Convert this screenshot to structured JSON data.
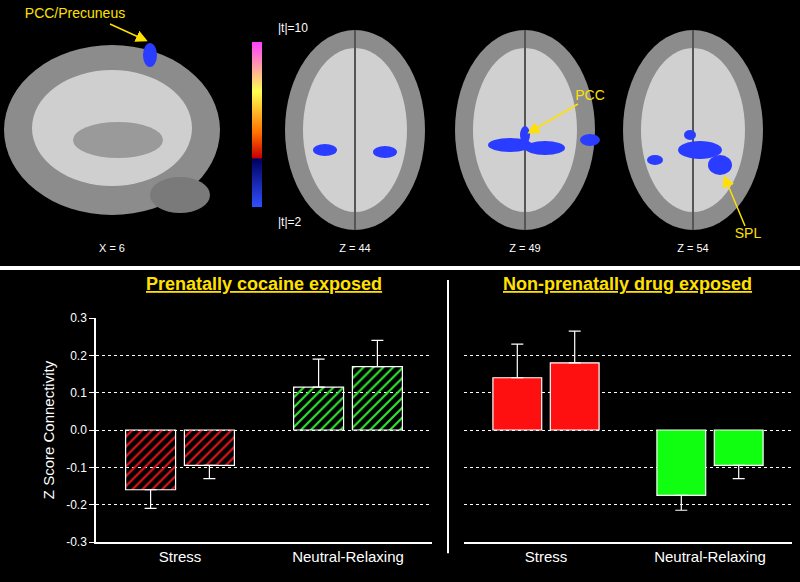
{
  "brain_maps": {
    "colorbar": {
      "max_label": "|t|=10",
      "min_label": "|t|=2"
    },
    "slices": [
      {
        "label": "X = 6",
        "region_labels": [
          "PCC/Precuneus"
        ]
      },
      {
        "label": "Z = 44",
        "region_labels": []
      },
      {
        "label": "Z = 49",
        "region_labels": [
          "PCC"
        ]
      },
      {
        "label": "Z = 54",
        "region_labels": [
          "SPL"
        ]
      }
    ]
  },
  "chart_data": [
    {
      "type": "bar",
      "title": "Prenatally cocaine exposed",
      "y_label": "Z Score Connectivity",
      "categories": [
        "Stress",
        "Neutral-Relaxing"
      ],
      "series": [
        {
          "values": [
            -0.16,
            0.115
          ],
          "errors": [
            0.05,
            0.075
          ],
          "colors": [
            "#e8141c",
            "#2ee62e"
          ],
          "marker": "hatched"
        },
        {
          "values": [
            -0.095,
            0.17
          ],
          "errors": [
            0.035,
            0.07
          ],
          "colors": [
            "#e8141c",
            "#2ee62e"
          ],
          "marker": "hatched"
        }
      ],
      "ylim": [
        -0.3,
        0.3
      ],
      "yticks": [
        -0.3,
        -0.2,
        -0.1,
        {
          "value": 0,
          "label": "0.0"
        },
        0.1,
        0.2,
        0.3
      ],
      "grid": true
    },
    {
      "type": "bar",
      "title": "Non-prenatally drug exposed",
      "categories": [
        "Stress",
        "Neutral-Relaxing"
      ],
      "series": [
        {
          "values": [
            0.14,
            -0.175
          ],
          "errors": [
            0.09,
            0.04
          ],
          "colors": [
            "#ff1010",
            "#10ff10"
          ],
          "marker": "solid"
        },
        {
          "values": [
            0.18,
            -0.095
          ],
          "errors": [
            0.085,
            0.035
          ],
          "colors": [
            "#ff1010",
            "#10ff10"
          ],
          "marker": "solid"
        }
      ],
      "ylim": [
        -0.3,
        0.3
      ],
      "yticks": [
        -0.3,
        -0.2,
        -0.1,
        {
          "value": 0,
          "label": "0.0"
        },
        0.1,
        0.2,
        0.3
      ],
      "grid": true,
      "tick_labels": "x"
    }
  ]
}
